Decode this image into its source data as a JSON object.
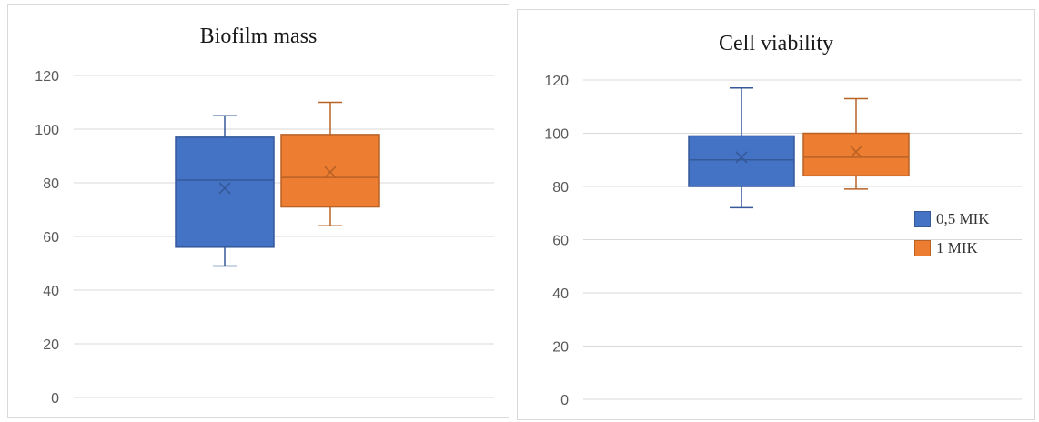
{
  "colors": {
    "series1": "#4472c4",
    "series2": "#ed7d31",
    "grid": "#d9d9d9",
    "axis": "#595959"
  },
  "chart_data": [
    {
      "type": "box",
      "title": "Biofilm mass",
      "ylim": [
        0,
        120
      ],
      "yticks": [
        0,
        20,
        40,
        60,
        80,
        100,
        120
      ],
      "grid": true,
      "legend": "none",
      "series": [
        {
          "name": "0,5 MIK",
          "min": 49,
          "q1": 56,
          "median": 81,
          "q3": 97,
          "max": 105,
          "mean": 78
        },
        {
          "name": "1 MIK",
          "min": 64,
          "q1": 71,
          "median": 82,
          "q3": 98,
          "max": 110,
          "mean": 84
        }
      ]
    },
    {
      "type": "box",
      "title": "Cell viability",
      "ylim": [
        0,
        120
      ],
      "yticks": [
        0,
        20,
        40,
        60,
        80,
        100,
        120
      ],
      "grid": true,
      "legend": "right",
      "series": [
        {
          "name": "0,5 MIK",
          "min": 72,
          "q1": 80,
          "median": 90,
          "q3": 99,
          "max": 117,
          "mean": 91
        },
        {
          "name": "1 MIK",
          "min": 79,
          "q1": 84,
          "median": 91,
          "q3": 100,
          "max": 113,
          "mean": 93
        }
      ]
    }
  ]
}
